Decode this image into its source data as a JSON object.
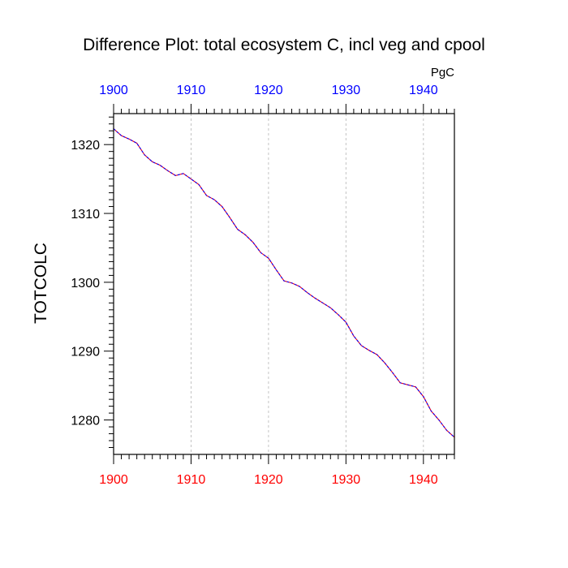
{
  "chart_data": {
    "type": "line",
    "title": "Difference Plot: total ecosystem C, incl veg and cpool",
    "units": "PgC",
    "ylabel": "TOTCOLC",
    "xlabel": "",
    "xlim": [
      1900,
      1944
    ],
    "ylim": [
      1275,
      1324.5
    ],
    "x_ticks_bottom": [
      "1900",
      "1910",
      "1920",
      "1930",
      "1940"
    ],
    "x_ticks_top": [
      "1900",
      "1910",
      "1920",
      "1930",
      "1940"
    ],
    "y_ticks": [
      "1280",
      "1290",
      "1300",
      "1310",
      "1320"
    ],
    "bottom_axis_color": "#ff0000",
    "top_axis_color": "#0000ff",
    "grid": "vertical dashed at major x ticks",
    "series": [
      {
        "color_1": "#ff0000",
        "color_2": "#0000ff",
        "x": [
          1900,
          1901,
          1902,
          1903,
          1904,
          1905,
          1906,
          1907,
          1908,
          1909,
          1910,
          1911,
          1912,
          1913,
          1914,
          1915,
          1916,
          1917,
          1918,
          1919,
          1920,
          1921,
          1922,
          1923,
          1924,
          1925,
          1926,
          1927,
          1928,
          1929,
          1930,
          1931,
          1932,
          1933,
          1934,
          1935,
          1936,
          1937,
          1938,
          1939,
          1940,
          1941,
          1942,
          1943,
          1944
        ],
        "values": [
          1322.3,
          1321.3,
          1320.8,
          1320.2,
          1318.5,
          1317.5,
          1317.0,
          1316.2,
          1315.5,
          1315.8,
          1315.0,
          1314.2,
          1312.6,
          1312.0,
          1311.0,
          1309.4,
          1307.7,
          1306.9,
          1305.8,
          1304.3,
          1303.5,
          1301.8,
          1300.2,
          1299.9,
          1299.4,
          1298.5,
          1297.7,
          1297.0,
          1296.3,
          1295.3,
          1294.2,
          1292.2,
          1290.8,
          1290.1,
          1289.5,
          1288.3,
          1286.9,
          1285.4,
          1285.1,
          1284.8,
          1283.4,
          1281.3,
          1280.0,
          1278.5,
          1277.5
        ]
      }
    ]
  }
}
